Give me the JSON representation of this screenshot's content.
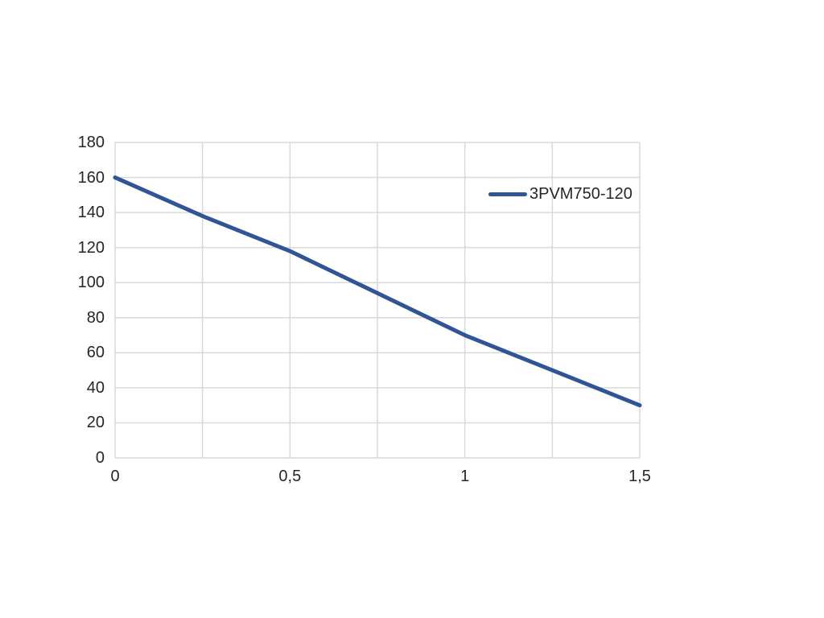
{
  "chart_data": {
    "type": "line",
    "title": "",
    "xlabel": "",
    "ylabel": "",
    "xlim": [
      0,
      1.5
    ],
    "ylim": [
      0,
      180
    ],
    "x_minor_gridline_step": 0.25,
    "y_gridline_step": 20,
    "grid": true,
    "legend_position": "inside-right-upper",
    "x_ticks": [
      {
        "value": 0,
        "label": "0"
      },
      {
        "value": 0.5,
        "label": "0,5"
      },
      {
        "value": 1,
        "label": "1"
      },
      {
        "value": 1.5,
        "label": "1,5"
      }
    ],
    "y_ticks": [
      {
        "value": 180,
        "label": "180"
      },
      {
        "value": 160,
        "label": "160"
      },
      {
        "value": 140,
        "label": "140"
      },
      {
        "value": 120,
        "label": "120"
      },
      {
        "value": 100,
        "label": "100"
      },
      {
        "value": 80,
        "label": "80"
      },
      {
        "value": 60,
        "label": "60"
      },
      {
        "value": 40,
        "label": "40"
      },
      {
        "value": 20,
        "label": "20"
      },
      {
        "value": 0,
        "label": "0"
      }
    ],
    "series": [
      {
        "name": "3PVM750-120",
        "color": "#2F5597",
        "points": [
          {
            "x": 0,
            "y": 160
          },
          {
            "x": 0.25,
            "y": 138
          },
          {
            "x": 0.5,
            "y": 118
          },
          {
            "x": 0.75,
            "y": 94
          },
          {
            "x": 1,
            "y": 70
          },
          {
            "x": 1.25,
            "y": 50
          },
          {
            "x": 1.5,
            "y": 30
          }
        ]
      }
    ]
  },
  "colors": {
    "line": "#2F5597",
    "gridline": "#D9D9D9",
    "text": "#262626",
    "background": "#FFFFFF"
  }
}
